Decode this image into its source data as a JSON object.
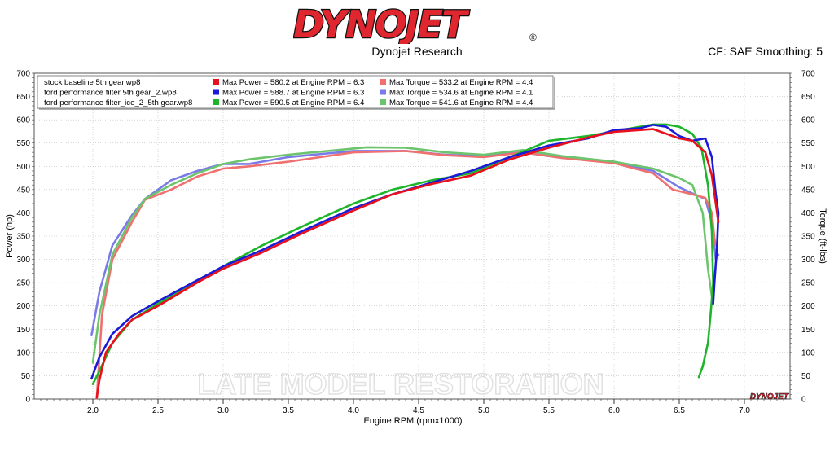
{
  "brand": {
    "logo_text": "DYNOJET",
    "registered_mark": "®",
    "subtitle": "Dynojet Research",
    "settings": "CF: SAE Smoothing: 5",
    "corner_logo": "DYNOJET",
    "watermark": "LATE MODEL RESTORATION",
    "colors": {
      "logo_red": "#e0262f",
      "logo_black": "#111111"
    }
  },
  "chart_data": {
    "type": "line",
    "xlabel": "Engine RPM (rpmx1000)",
    "ylabel": "Power (hp)",
    "y2label": "Torque (ft-lbs)",
    "xlim": [
      1.55,
      7.35
    ],
    "ylim": [
      0,
      700
    ],
    "y2lim": [
      0,
      700
    ],
    "x_ticks": [
      "2.0",
      "2.5",
      "3.0",
      "3.5",
      "4.0",
      "4.5",
      "5.0",
      "5.5",
      "6.0",
      "6.5",
      "7.0"
    ],
    "y_ticks": [
      "0",
      "50",
      "100",
      "150",
      "200",
      "250",
      "300",
      "350",
      "400",
      "450",
      "500",
      "550",
      "600",
      "650",
      "700"
    ],
    "grid": true,
    "legend_position": "top-left",
    "legend": [
      {
        "file": "stock baseline 5th gear.wp8",
        "power_text": "Max Power = 580.2 at Engine RPM = 6.3",
        "torque_text": "Max Torque = 533.2 at Engine RPM = 4.4",
        "power_color": "#e8101c",
        "torque_color": "#f07070"
      },
      {
        "file": "ford performance filter 5th gear_2.wp8",
        "power_text": "Max Power = 588.7 at Engine RPM = 6.3",
        "torque_text": "Max Torque = 534.6 at Engine RPM = 4.1",
        "power_color": "#1a1ad8",
        "torque_color": "#7a7ae8"
      },
      {
        "file": "ford performance filter_ice_2_5th gear.wp8",
        "power_text": "Max Power = 590.5 at Engine RPM = 6.4",
        "torque_text": "Max Torque = 541.6 at Engine RPM = 4.4",
        "power_color": "#1fb52a",
        "torque_color": "#6cc46c"
      }
    ],
    "series": [
      {
        "axis": "torque",
        "color": "#7a7ae8",
        "x": [
          1.99,
          2.05,
          2.15,
          2.3,
          2.4,
          2.6,
          2.8,
          3.0,
          3.2,
          3.5,
          4.0,
          4.4,
          4.7,
          5.0,
          5.3,
          5.6,
          6.0,
          6.3,
          6.5,
          6.6,
          6.7,
          6.75,
          6.78,
          6.8
        ],
        "y": [
          137,
          230,
          330,
          395,
          430,
          470,
          490,
          505,
          505,
          520,
          533,
          533,
          525,
          522,
          530,
          518,
          510,
          490,
          455,
          442,
          430,
          380,
          300,
          310
        ]
      },
      {
        "axis": "torque",
        "color": "#f07070",
        "x": [
          2.03,
          2.07,
          2.15,
          2.3,
          2.4,
          2.6,
          2.8,
          3.0,
          3.2,
          3.5,
          4.0,
          4.4,
          4.7,
          5.0,
          5.3,
          5.6,
          6.0,
          6.3,
          6.45,
          6.6,
          6.7,
          6.75,
          6.77,
          6.78
        ],
        "y": [
          2,
          180,
          300,
          380,
          428,
          450,
          478,
          495,
          500,
          510,
          530,
          533,
          524,
          520,
          530,
          518,
          507,
          485,
          450,
          440,
          432,
          400,
          345,
          330
        ]
      },
      {
        "axis": "torque",
        "color": "#6cc46c",
        "x": [
          2.0,
          2.05,
          2.15,
          2.3,
          2.4,
          2.6,
          2.8,
          3.0,
          3.2,
          3.5,
          4.1,
          4.4,
          4.7,
          5.0,
          5.3,
          5.6,
          6.0,
          6.3,
          6.5,
          6.6,
          6.68,
          6.72,
          6.75
        ],
        "y": [
          78,
          180,
          310,
          390,
          430,
          460,
          485,
          505,
          515,
          525,
          541,
          540,
          530,
          525,
          535,
          522,
          510,
          495,
          475,
          460,
          400,
          280,
          220
        ]
      },
      {
        "axis": "power",
        "color": "#1fb52a",
        "x": [
          2.0,
          2.05,
          2.15,
          2.3,
          2.5,
          2.8,
          3.0,
          3.3,
          3.6,
          4.0,
          4.3,
          4.6,
          4.9,
          5.2,
          5.5,
          5.8,
          6.0,
          6.2,
          6.3,
          6.4,
          6.5,
          6.6,
          6.67,
          6.72,
          6.75,
          6.76,
          6.74,
          6.72,
          6.68,
          6.65
        ],
        "y": [
          32,
          60,
          120,
          170,
          205,
          250,
          285,
          330,
          370,
          420,
          450,
          470,
          485,
          520,
          555,
          565,
          575,
          585,
          590,
          590,
          585,
          570,
          540,
          460,
          360,
          250,
          180,
          120,
          70,
          47
        ]
      },
      {
        "axis": "power",
        "color": "#1a1ad8",
        "x": [
          1.99,
          2.05,
          2.15,
          2.3,
          2.5,
          2.8,
          3.0,
          3.3,
          3.6,
          4.0,
          4.3,
          4.6,
          4.9,
          5.2,
          5.5,
          5.8,
          6.0,
          6.2,
          6.3,
          6.4,
          6.5,
          6.6,
          6.7,
          6.75,
          6.78,
          6.8,
          6.79,
          6.77,
          6.76
        ],
        "y": [
          44,
          90,
          140,
          178,
          210,
          255,
          285,
          320,
          360,
          410,
          440,
          465,
          490,
          520,
          545,
          560,
          578,
          582,
          589,
          585,
          565,
          555,
          560,
          520,
          440,
          400,
          330,
          250,
          205
        ]
      },
      {
        "axis": "power",
        "color": "#e8101c",
        "x": [
          2.03,
          2.05,
          2.1,
          2.2,
          2.3,
          2.5,
          2.8,
          3.0,
          3.3,
          3.6,
          4.0,
          4.3,
          4.6,
          4.9,
          5.2,
          5.5,
          5.8,
          6.0,
          6.2,
          6.3,
          6.4,
          6.5,
          6.6,
          6.7,
          6.75,
          6.78,
          6.8
        ],
        "y": [
          3,
          40,
          100,
          140,
          170,
          200,
          250,
          280,
          315,
          355,
          405,
          440,
          462,
          480,
          515,
          540,
          562,
          574,
          578,
          580,
          570,
          560,
          555,
          530,
          480,
          420,
          380
        ]
      }
    ]
  }
}
